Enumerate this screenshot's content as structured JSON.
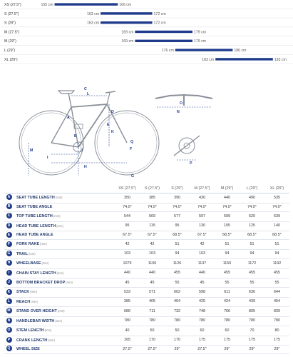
{
  "range_chart": {
    "rows": [
      {
        "label": "XS (27.5\")",
        "min": 155,
        "max": 166,
        "min_label": "155 cm",
        "max_label": "166 cm"
      },
      {
        "label": "S (27.5\")",
        "min": 163,
        "max": 172,
        "min_label": "163 cm",
        "max_label": "172 cm"
      },
      {
        "label": "S (29\")",
        "min": 163,
        "max": 172,
        "min_label": "163 cm",
        "max_label": "172 cm"
      },
      {
        "label": "M (27.5\")",
        "min": 169,
        "max": 179,
        "min_label": "169 cm",
        "max_label": "179 cm"
      },
      {
        "label": "M (29\")",
        "min": 169,
        "max": 179,
        "min_label": "169 cm",
        "max_label": "179 cm"
      },
      {
        "label": "L (29\")",
        "min": 176,
        "max": 186,
        "min_label": "176 cm",
        "max_label": "186 cm"
      },
      {
        "label": "XL (29\")",
        "min": 183,
        "max": 193,
        "min_label": "183 cm",
        "max_label": "193 cm"
      }
    ],
    "bar_color": "#1f3b8c"
  },
  "diagram": {
    "frame_color": "#8a8f99",
    "accent_color": "#1f3b8c",
    "labels": [
      "A",
      "B",
      "C",
      "D",
      "E",
      "F",
      "G",
      "H",
      "I",
      "J",
      "K",
      "L",
      "M",
      "N",
      "O",
      "P",
      "Q"
    ]
  },
  "table": {
    "columns": [
      "XS (27.5\")",
      "S (27.5\")",
      "S (29\")",
      "M (27.5\")",
      "M (29\")",
      "L (29\")",
      "XL (29\")"
    ],
    "rows": [
      {
        "key": "A",
        "name": "SEAT TUBE LENGTH",
        "unit": "(mm)",
        "values": [
          "350",
          "385",
          "390",
          "430",
          "440",
          "490",
          "535"
        ]
      },
      {
        "key": "B",
        "name": "SEAT TUBE ANGLE",
        "unit": "",
        "values": [
          "74.0°",
          "74.0°",
          "74.0°",
          "74.0°",
          "74.0°",
          "74.0°",
          "74.0°"
        ]
      },
      {
        "key": "C",
        "name": "TOP TUBE LENGTH",
        "unit": "(mm)",
        "values": [
          "544",
          "569",
          "577",
          "597",
          "599",
          "620",
          "639"
        ]
      },
      {
        "key": "D",
        "name": "HEAD TUBE LENGTH",
        "unit": "(mm)",
        "values": [
          "95",
          "115",
          "95",
          "130",
          "105",
          "125",
          "140"
        ]
      },
      {
        "key": "E",
        "name": "HEAD TUBE ANGLE",
        "unit": "",
        "values": [
          "67.5°",
          "67.5°",
          "68.5°",
          "67.5°",
          "68.5°",
          "68.5°",
          "68.5°"
        ]
      },
      {
        "key": "F",
        "name": "FORK RAKE",
        "unit": "(mm)",
        "values": [
          "42",
          "42",
          "51",
          "42",
          "51",
          "51",
          "51"
        ]
      },
      {
        "key": "G",
        "name": "TRAIL",
        "unit": "(mm)",
        "values": [
          "103",
          "103",
          "94",
          "103",
          "94",
          "94",
          "94"
        ]
      },
      {
        "key": "H",
        "name": "WHEELBASE",
        "unit": "(mm)",
        "values": [
          "1079",
          "1106",
          "1126",
          "1137",
          "1150",
          "1172",
          "1192"
        ]
      },
      {
        "key": "I",
        "name": "CHAIN STAY LENGTH",
        "unit": "(mm)",
        "values": [
          "440",
          "440",
          "455",
          "440",
          "455",
          "455",
          "455"
        ]
      },
      {
        "key": "J",
        "name": "BOTTOM BRACKET DROP",
        "unit": "(mm)",
        "values": [
          "45",
          "45",
          "55",
          "45",
          "55",
          "55",
          "55"
        ]
      },
      {
        "key": "K",
        "name": "STACK",
        "unit": "(mm)",
        "values": [
          "533",
          "571",
          "602",
          "598",
          "611",
          "630",
          "644"
        ]
      },
      {
        "key": "L",
        "name": "REACH",
        "unit": "(mm)",
        "values": [
          "385",
          "405",
          "404",
          "425",
          "424",
          "439",
          "454"
        ]
      },
      {
        "key": "M",
        "name": "STAND OVER HEIGHT",
        "unit": "(mm)",
        "values": [
          "686",
          "711",
          "732",
          "748",
          "766",
          "805",
          "839"
        ]
      },
      {
        "key": "N",
        "name": "HANDLEBAR WIDTH",
        "unit": "(mm)",
        "values": [
          "780",
          "780",
          "780",
          "780",
          "780",
          "780",
          "780"
        ]
      },
      {
        "key": "O",
        "name": "STEM LENGTH",
        "unit": "(mm)",
        "values": [
          "40",
          "50",
          "50",
          "60",
          "60",
          "70",
          "80"
        ]
      },
      {
        "key": "P",
        "name": "CRANK LENGTH",
        "unit": "(mm)",
        "values": [
          "165",
          "170",
          "170",
          "175",
          "175",
          "175",
          "175"
        ]
      },
      {
        "key": "Q",
        "name": "WHEEL SIZE",
        "unit": "",
        "values": [
          "27.5\"",
          "27.5\"",
          "29\"",
          "27.5\"",
          "29\"",
          "29\"",
          "29\""
        ]
      }
    ]
  }
}
